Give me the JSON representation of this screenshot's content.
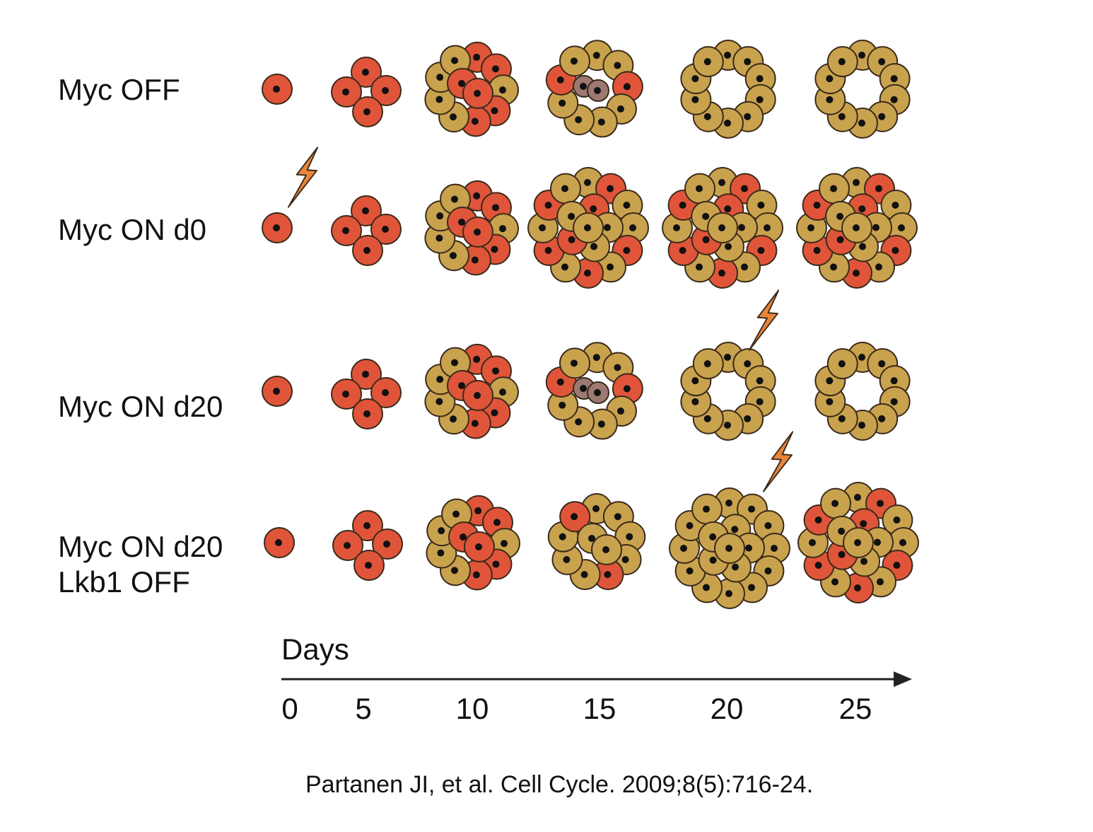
{
  "rows": [
    {
      "label": "Myc OFF",
      "label_line2": ""
    },
    {
      "label": "Myc ON d0",
      "label_line2": ""
    },
    {
      "label": "Myc ON d20",
      "label_line2": ""
    },
    {
      "label": "Myc ON d20",
      "label_line2": "Lkb1 OFF"
    }
  ],
  "axis": {
    "title": "Days",
    "ticks": [
      "0",
      "5",
      "10",
      "15",
      "20",
      "25"
    ]
  },
  "citation": "Partanen JI, et al. Cell Cycle. 2009;8(5):716-24.",
  "colors": {
    "myc_cell": "#e0553a",
    "normal_cell": "#c9a24e",
    "apoptotic_cell": "#9c7a72",
    "outline": "#3a2a1a",
    "nucleus": "#111111",
    "lightning": "#e8853a",
    "axis": "#222222"
  },
  "icons": {
    "trigger": "lightning-bolt-icon"
  }
}
